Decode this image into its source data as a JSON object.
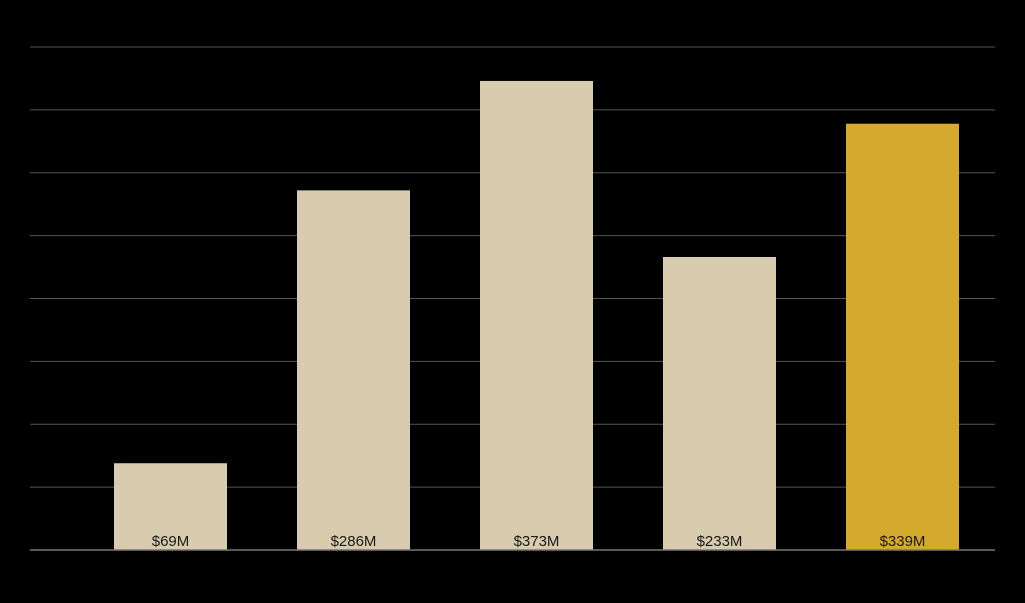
{
  "colors": {
    "background": "#000000",
    "bar_default": "#d9cbad",
    "bar_highlight": "#d4aa2c",
    "gridline": "#555555",
    "baseline": "#777777",
    "label_text": "#1a1a1a"
  },
  "chart_data": {
    "type": "bar",
    "title": "",
    "xlabel": "",
    "ylabel": "",
    "categories": [
      "",
      "",
      "",
      "",
      ""
    ],
    "values": [
      69,
      286,
      373,
      233,
      339
    ],
    "data_labels": [
      "$69M",
      "$286M",
      "$373M",
      "$233M",
      "$339M"
    ],
    "highlight_index": 4,
    "unit": "$M",
    "ylim": [
      0,
      400
    ],
    "grid": true,
    "legend": "none"
  }
}
